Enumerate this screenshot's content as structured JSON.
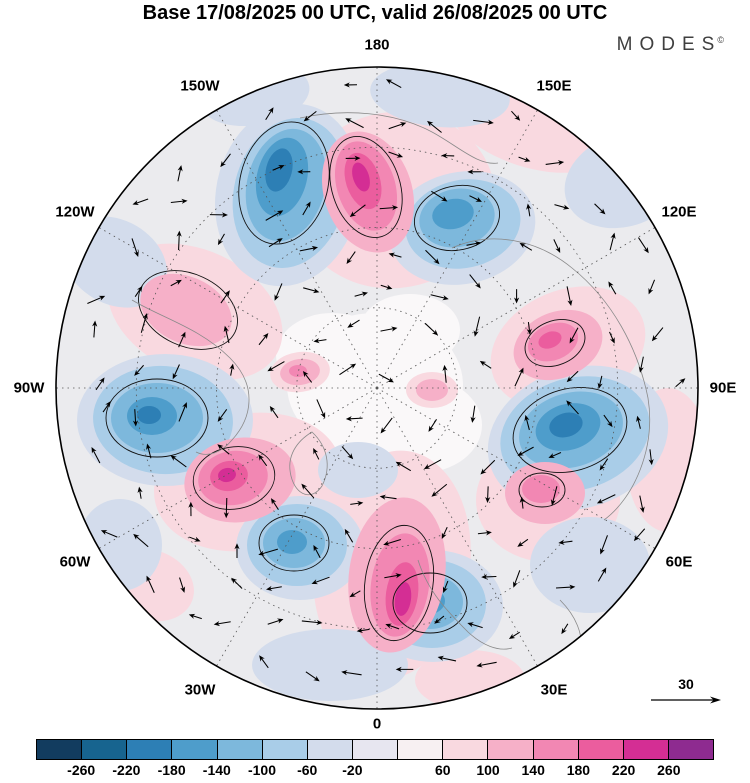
{
  "header": {
    "title": "Base 17/08/2025 00 UTC, valid 26/08/2025 00 UTC",
    "brand": "MODES",
    "brand_mark": "©"
  },
  "map": {
    "meridian_labels": [
      {
        "text": "180"
      },
      {
        "text": "150W"
      },
      {
        "text": "150E"
      },
      {
        "text": "120W"
      },
      {
        "text": "120E"
      },
      {
        "text": "90W"
      },
      {
        "text": "90E"
      },
      {
        "text": "60W"
      },
      {
        "text": "60E"
      },
      {
        "text": "30W"
      },
      {
        "text": "30E"
      },
      {
        "text": "0"
      }
    ]
  },
  "colorbar": {
    "colors": [
      "#123c5f",
      "#17648f",
      "#2d7fb5",
      "#4e9dcb",
      "#7db8dc",
      "#a9cde8",
      "#d3dcec",
      "#e7e6f0",
      "#f7f0f2",
      "#f9d9e0",
      "#f6b0c8",
      "#f287b3",
      "#eb5d9e",
      "#d42e94",
      "#8e2b90"
    ],
    "tick_labels": [
      "-260",
      "-220",
      "-180",
      "-140",
      "-100",
      "-60",
      "-20",
      "",
      "60",
      "100",
      "140",
      "180",
      "220",
      "260"
    ]
  },
  "reference_vector": {
    "label": "30"
  },
  "chart_data": {
    "type": "heatmap",
    "title": "Base 17/08/2025 00 UTC, valid 26/08/2025 00 UTC",
    "projection": "north-polar-stereographic",
    "field": "filled anomaly contours with wind vector overlay and black contour lines",
    "meridian_labels": [
      "180",
      "150W",
      "150E",
      "120W",
      "120E",
      "90W",
      "90E",
      "60W",
      "60E",
      "30W",
      "30E",
      "0"
    ],
    "contour_levels": [
      -260,
      -220,
      -180,
      -140,
      -100,
      -60,
      -20,
      20,
      60,
      100,
      140,
      180,
      220,
      260
    ],
    "palette": [
      "#123c5f",
      "#17648f",
      "#2d7fb5",
      "#4e9dcb",
      "#7db8dc",
      "#a9cde8",
      "#d3dcec",
      "#e7e6f0",
      "#f7f0f2",
      "#f9d9e0",
      "#f6b0c8",
      "#f287b3",
      "#eb5d9e",
      "#d42e94",
      "#8e2b90"
    ],
    "legend_position": "bottom-colorbar",
    "vector_reference": 30,
    "graticule": "dashed latitude circles and meridians every 30 degrees",
    "brand": "MODES"
  }
}
